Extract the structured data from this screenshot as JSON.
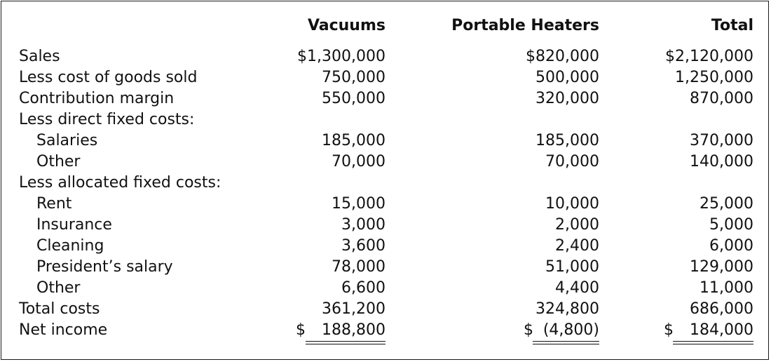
{
  "headers": {
    "vacuums": "Vacuums",
    "heaters": "Portable Heaters",
    "total": "Total"
  },
  "rows": [
    {
      "label": "Sales",
      "v": "$1,300,000",
      "p": "$820,000",
      "t": "$2,120,000"
    },
    {
      "label": "Less cost of goods sold",
      "v": "750,000",
      "p": "500,000",
      "t": "1,250,000"
    },
    {
      "label": "Contribution margin",
      "v": "550,000",
      "p": "320,000",
      "t": "870,000"
    },
    {
      "label": "Less direct fixed costs:",
      "v": "",
      "p": "",
      "t": ""
    },
    {
      "label": "Salaries",
      "v": "185,000",
      "p": "185,000",
      "t": "370,000"
    },
    {
      "label": "Other",
      "v": "70,000",
      "p": "70,000",
      "t": "140,000"
    },
    {
      "label": "Less allocated fixed costs:",
      "v": "",
      "p": "",
      "t": ""
    },
    {
      "label": "Rent",
      "v": "15,000",
      "p": "10,000",
      "t": "25,000"
    },
    {
      "label": "Insurance",
      "v": "3,000",
      "p": "2,000",
      "t": "5,000"
    },
    {
      "label": "Cleaning",
      "v": "3,600",
      "p": "2,400",
      "t": "6,000"
    },
    {
      "label": "President’s salary",
      "v": "78,000",
      "p": "51,000",
      "t": "129,000"
    },
    {
      "label": "Other",
      "v": "6,600",
      "p": "4,400",
      "t": "11,000"
    },
    {
      "label": "Total costs",
      "v": "361,200",
      "p": "324,800",
      "t": "686,000"
    }
  ],
  "net_income": {
    "label": "Net income",
    "currency": "$",
    "v": "188,800",
    "p": "(4,800)",
    "t": "184,000"
  }
}
